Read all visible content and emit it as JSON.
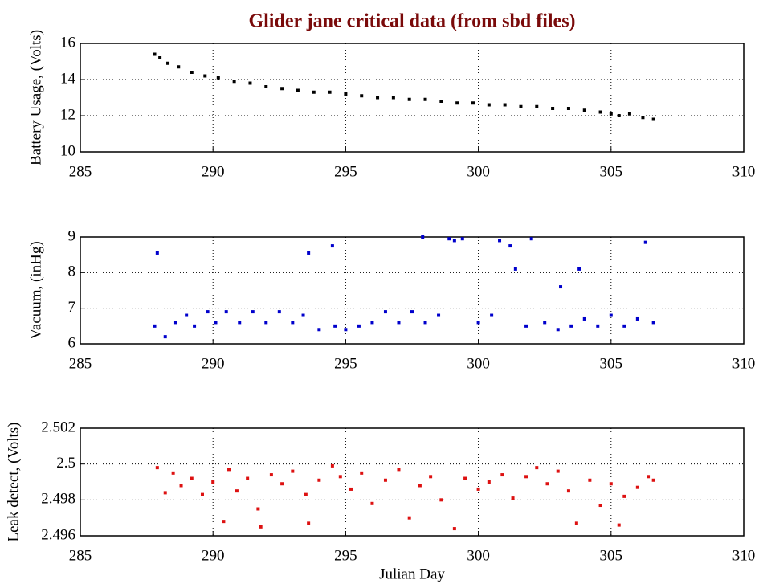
{
  "chart_data": [
    {
      "type": "scatter",
      "title": "Glider jane critical data (from sbd files)",
      "ylabel": "Battery Usage, (Volts)",
      "xlim": [
        285,
        310
      ],
      "xticks": [
        285,
        290,
        295,
        300,
        305,
        310
      ],
      "ylim": [
        10,
        16
      ],
      "yticks": [
        10,
        12,
        14,
        16
      ],
      "grid": true,
      "color": "#000000",
      "x": [
        287.8,
        288.0,
        288.3,
        288.7,
        289.2,
        289.7,
        290.2,
        290.8,
        291.4,
        292.0,
        292.6,
        293.2,
        293.8,
        294.4,
        295.0,
        295.6,
        296.2,
        296.8,
        297.4,
        298.0,
        298.6,
        299.2,
        299.8,
        300.4,
        301.0,
        301.6,
        302.2,
        302.8,
        303.4,
        304.0,
        304.6,
        305.0,
        305.3,
        305.7,
        306.2,
        306.6
      ],
      "values": [
        15.4,
        15.2,
        14.9,
        14.7,
        14.4,
        14.2,
        14.1,
        13.9,
        13.8,
        13.6,
        13.5,
        13.4,
        13.3,
        13.3,
        13.2,
        13.1,
        13.0,
        13.0,
        12.9,
        12.9,
        12.8,
        12.7,
        12.7,
        12.6,
        12.6,
        12.5,
        12.5,
        12.4,
        12.4,
        12.3,
        12.2,
        12.1,
        12.0,
        12.1,
        11.9,
        11.8
      ]
    },
    {
      "type": "scatter",
      "ylabel": "Vacuum, (inHg)",
      "xlim": [
        285,
        310
      ],
      "xticks": [
        285,
        290,
        295,
        300,
        305,
        310
      ],
      "ylim": [
        6,
        9
      ],
      "yticks": [
        6,
        7,
        8,
        9
      ],
      "grid": true,
      "color": "#0000cc",
      "x": [
        287.8,
        287.9,
        288.2,
        288.6,
        289.0,
        289.3,
        289.8,
        290.1,
        290.5,
        291.0,
        291.5,
        292.0,
        292.5,
        293.0,
        293.4,
        293.6,
        294.0,
        294.5,
        294.6,
        295.0,
        295.5,
        296.0,
        296.5,
        297.0,
        297.5,
        297.9,
        298.0,
        298.5,
        298.9,
        299.1,
        299.4,
        300.0,
        300.5,
        300.8,
        301.2,
        301.4,
        301.8,
        302.0,
        302.5,
        303.0,
        303.1,
        303.5,
        303.8,
        304.0,
        304.5,
        305.0,
        305.5,
        306.0,
        306.3,
        306.6
      ],
      "values": [
        6.5,
        8.55,
        6.2,
        6.6,
        6.8,
        6.5,
        6.9,
        6.6,
        6.9,
        6.6,
        6.9,
        6.6,
        6.9,
        6.6,
        6.8,
        8.55,
        6.4,
        8.75,
        6.5,
        6.4,
        6.5,
        6.6,
        6.9,
        6.6,
        6.9,
        9.0,
        6.6,
        6.8,
        8.95,
        8.9,
        8.95,
        6.6,
        6.8,
        8.9,
        8.75,
        8.1,
        6.5,
        8.95,
        6.6,
        6.4,
        7.6,
        6.5,
        8.1,
        6.7,
        6.5,
        6.8,
        6.5,
        6.7,
        8.85,
        6.6
      ]
    },
    {
      "type": "scatter",
      "ylabel": "Leak detect, (Volts)",
      "xlabel": "Julian Day",
      "xlim": [
        285,
        310
      ],
      "xticks": [
        285,
        290,
        295,
        300,
        305,
        310
      ],
      "ylim": [
        2.496,
        2.502
      ],
      "yticks": [
        2.496,
        2.498,
        2.5,
        2.502
      ],
      "grid": true,
      "color": "#dd1111",
      "x": [
        287.9,
        288.2,
        288.5,
        288.8,
        289.2,
        289.6,
        290.0,
        290.4,
        290.6,
        290.9,
        291.3,
        291.7,
        291.8,
        292.2,
        292.6,
        293.0,
        293.5,
        293.6,
        294.0,
        294.5,
        294.8,
        295.2,
        295.6,
        296.0,
        296.5,
        297.0,
        297.4,
        297.8,
        298.2,
        298.6,
        299.1,
        299.5,
        300.0,
        300.4,
        300.9,
        301.3,
        301.8,
        302.2,
        302.6,
        303.0,
        303.4,
        303.7,
        304.2,
        304.6,
        305.0,
        305.3,
        305.5,
        306.0,
        306.4,
        306.6
      ],
      "values": [
        2.4998,
        2.4984,
        2.4995,
        2.4988,
        2.4992,
        2.4983,
        2.499,
        2.4968,
        2.4997,
        2.4985,
        2.4992,
        2.4975,
        2.4965,
        2.4994,
        2.4989,
        2.4996,
        2.4983,
        2.4967,
        2.4991,
        2.4999,
        2.4993,
        2.4986,
        2.4995,
        2.4978,
        2.4991,
        2.4997,
        2.497,
        2.4988,
        2.4993,
        2.498,
        2.4964,
        2.4992,
        2.4986,
        2.499,
        2.4994,
        2.4981,
        2.4993,
        2.4998,
        2.4989,
        2.4996,
        2.4985,
        2.4967,
        2.4991,
        2.4977,
        2.4989,
        2.4966,
        2.4982,
        2.4987,
        2.4993,
        2.4991
      ]
    }
  ]
}
